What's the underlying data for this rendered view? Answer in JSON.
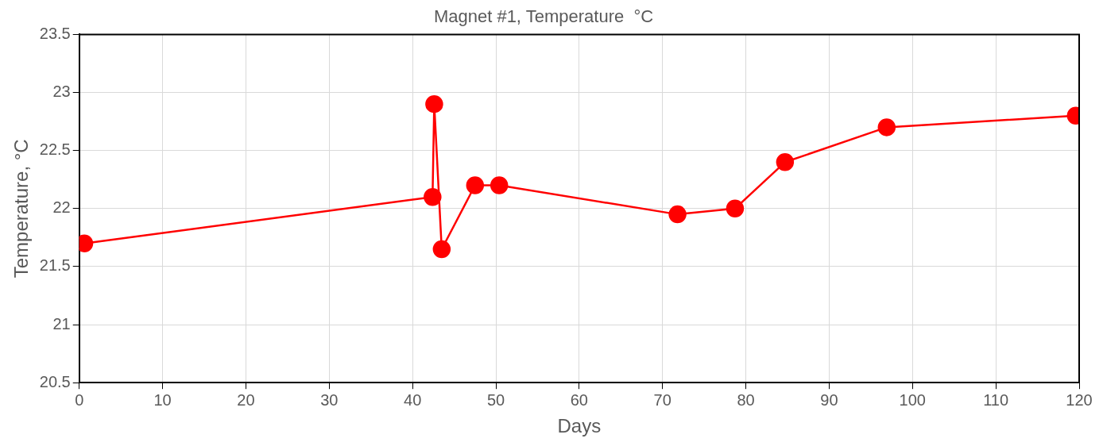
{
  "chart_data": {
    "type": "line",
    "title": "Magnet #1, Temperature  °C",
    "xlabel": "Days",
    "ylabel": "Temperature, °C",
    "x": [
      0.6,
      42.4,
      42.6,
      43.5,
      47.5,
      50.4,
      71.8,
      78.7,
      84.7,
      96.9,
      119.6
    ],
    "series": [
      {
        "color": "#ff0000",
        "values": [
          21.7,
          22.1,
          22.9,
          21.65,
          22.2,
          22.2,
          21.95,
          22.0,
          22.4,
          22.7,
          22.8
        ]
      }
    ],
    "xlim": [
      0,
      120
    ],
    "xticks": [
      0,
      10,
      20,
      30,
      40,
      50,
      60,
      70,
      80,
      90,
      100,
      110,
      120
    ],
    "ylim": [
      20.5,
      23.5
    ],
    "yticks": [
      20.5,
      21,
      21.5,
      22,
      22.5,
      23,
      23.5
    ],
    "grid": true,
    "legend": false,
    "marker": "circle",
    "line_style": "solid"
  }
}
